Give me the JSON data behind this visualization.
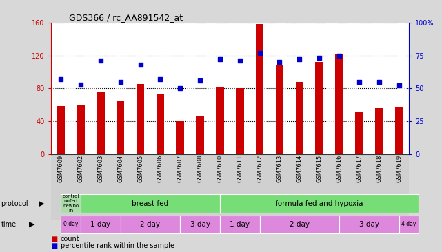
{
  "title": "GDS366 / rc_AA891542_at",
  "samples": [
    "GSM7609",
    "GSM7602",
    "GSM7603",
    "GSM7604",
    "GSM7605",
    "GSM7606",
    "GSM7607",
    "GSM7608",
    "GSM7610",
    "GSM7611",
    "GSM7612",
    "GSM7613",
    "GSM7614",
    "GSM7615",
    "GSM7616",
    "GSM7617",
    "GSM7618",
    "GSM7619"
  ],
  "counts": [
    58,
    60,
    75,
    65,
    85,
    73,
    40,
    46,
    82,
    80,
    158,
    108,
    88,
    112,
    122,
    52,
    56,
    57
  ],
  "percentiles": [
    57,
    53,
    71,
    55,
    68,
    57,
    50,
    56,
    72,
    71,
    77,
    70,
    72,
    73,
    75,
    55,
    55,
    52
  ],
  "bar_color": "#cc0000",
  "dot_color": "#0000cc",
  "ylim_left": [
    0,
    160
  ],
  "ylim_right": [
    0,
    100
  ],
  "yticks_left": [
    0,
    40,
    80,
    120,
    160
  ],
  "yticks_right": [
    0,
    25,
    50,
    75,
    100
  ],
  "ytick_labels_left": [
    "0",
    "40",
    "80",
    "120",
    "160"
  ],
  "ytick_labels_right": [
    "0",
    "25",
    "50",
    "75",
    "100%"
  ],
  "left_axis_color": "#cc0000",
  "right_axis_color": "#0000cc",
  "protocol_labels": [
    {
      "text": "control\nunfed\nnewbo\nrn",
      "start": 0,
      "end": 1,
      "color": "#aaddaa"
    },
    {
      "text": "breast fed",
      "start": 1,
      "end": 8,
      "color": "#77dd77"
    },
    {
      "text": "formula fed and hypoxia",
      "start": 8,
      "end": 18,
      "color": "#77dd77"
    }
  ],
  "time_labels": [
    {
      "text": "0 day",
      "start": 0,
      "end": 1,
      "color": "#dd88dd"
    },
    {
      "text": "1 day",
      "start": 1,
      "end": 3,
      "color": "#dd88dd"
    },
    {
      "text": "2 day",
      "start": 3,
      "end": 6,
      "color": "#dd88dd"
    },
    {
      "text": "3 day",
      "start": 6,
      "end": 8,
      "color": "#dd88dd"
    },
    {
      "text": "1 day",
      "start": 8,
      "end": 10,
      "color": "#dd88dd"
    },
    {
      "text": "2 day",
      "start": 10,
      "end": 14,
      "color": "#dd88dd"
    },
    {
      "text": "3 day",
      "start": 14,
      "end": 17,
      "color": "#dd88dd"
    },
    {
      "text": "4 day",
      "start": 17,
      "end": 18,
      "color": "#dd88dd"
    }
  ],
  "bg_color": "#d8d8d8",
  "plot_bg_color": "#ffffff",
  "grid_color": "#000000",
  "legend_count_color": "#cc0000",
  "legend_pct_color": "#0000cc",
  "tick_bg_color": "#d0d0d0"
}
